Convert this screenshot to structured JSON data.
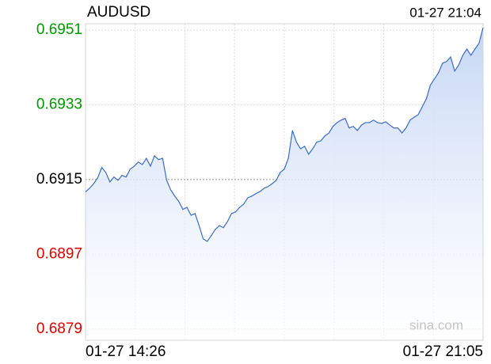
{
  "chart_data": {
    "type": "area-line",
    "title": "AUDUSD",
    "timestamp": "01-27 21:04",
    "watermark": "sina.com",
    "categories": [
      "01-27 14:26",
      null,
      null,
      null,
      null,
      null,
      null,
      null,
      null,
      null,
      null,
      null,
      null,
      null,
      null,
      null,
      null,
      null,
      null,
      null,
      null,
      null,
      null,
      null,
      null,
      null,
      null,
      null,
      null,
      null,
      null,
      null,
      null,
      null,
      null,
      null,
      null,
      null,
      null,
      null,
      null,
      null,
      null,
      null,
      null,
      null,
      null,
      null,
      null,
      null,
      null,
      null,
      null,
      null,
      null,
      null,
      null,
      null,
      null,
      null,
      null,
      null,
      null,
      null,
      null,
      null,
      null,
      null,
      null,
      null,
      null,
      null,
      null,
      null,
      null,
      null,
      null,
      null,
      null,
      null,
      null,
      null,
      null,
      null,
      null,
      null,
      null,
      null,
      null,
      null,
      null,
      null,
      null,
      null,
      null,
      null,
      null,
      null,
      "01-27 21:05"
    ],
    "series": [
      {
        "name": "AUDUSD",
        "color": "#3a6cc6",
        "values": [
          0.6912,
          0.69129,
          0.6914,
          0.69154,
          0.69179,
          0.69167,
          0.69144,
          0.69156,
          0.69148,
          0.6916,
          0.69156,
          0.69175,
          0.69182,
          0.69192,
          0.69186,
          0.69201,
          0.69182,
          0.69207,
          0.69198,
          0.69201,
          0.69148,
          0.69125,
          0.6911,
          0.69097,
          0.69078,
          0.69083,
          0.69064,
          0.69068,
          0.69039,
          0.69007,
          0.69001,
          0.69015,
          0.6903,
          0.69039,
          0.69034,
          0.69049,
          0.69068,
          0.69072,
          0.69083,
          0.69091,
          0.69106,
          0.6911,
          0.69116,
          0.69121,
          0.69129,
          0.69133,
          0.6914,
          0.69148,
          0.69167,
          0.69175,
          0.69201,
          0.69268,
          0.6924,
          0.69224,
          0.6923,
          0.69211,
          0.69224,
          0.6924,
          0.69243,
          0.69255,
          0.69262,
          0.69278,
          0.69287,
          0.69293,
          0.69297,
          0.69274,
          0.69278,
          0.69268,
          0.69281,
          0.69287,
          0.69287,
          0.69293,
          0.69287,
          0.69285,
          0.69289,
          0.69281,
          0.69274,
          0.69274,
          0.69262,
          0.69274,
          0.69293,
          0.693,
          0.69306,
          0.69325,
          0.69344,
          0.69377,
          0.69392,
          0.69407,
          0.6943,
          0.69434,
          0.69445,
          0.69411,
          0.69426,
          0.69449,
          0.69464,
          0.69449,
          0.69464,
          0.69478,
          0.69516
        ]
      }
    ],
    "ylim": [
      0.68763,
      0.69525
    ],
    "yticks": [
      0.6879,
      0.6897,
      0.6915,
      0.6933,
      0.6951
    ],
    "reference_line": 0.6915,
    "up_color": "#009900",
    "down_color": "#dd0000",
    "flat_color": "#000000",
    "grid": true
  }
}
